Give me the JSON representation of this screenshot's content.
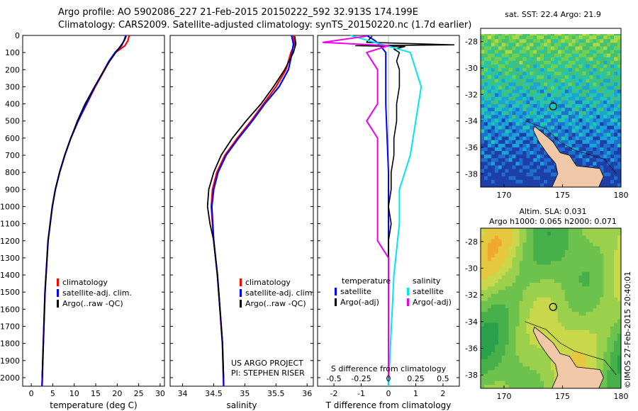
{
  "header": {
    "line1": "Argo profile: AO 5902086_227 21-Feb-2015 20150222_592 32.913S 174.199E",
    "line2": "Climatology: CARS2009. Satellite-adjusted climatology: synTS_20150220.nc (1.7d earlier)"
  },
  "stamp": "©IMOS 27-Feb-2015 20:40:01",
  "colors": {
    "climatology": "#ff0000",
    "satellite": "#0000ff",
    "argo": "#000000",
    "sal_satellite": "#00e5ee",
    "sal_argo": "#ee00ee"
  },
  "chart_data": [
    {
      "type": "line",
      "xlabel": "temperature (deg C)",
      "ylabel": "",
      "xlim": [
        -2,
        31
      ],
      "ylim": [
        2050,
        0
      ],
      "x_ticks": [
        0,
        5,
        10,
        15,
        20,
        25,
        30
      ],
      "y_ticks": [
        0,
        100,
        200,
        300,
        400,
        500,
        600,
        700,
        800,
        900,
        1000,
        1100,
        1200,
        1300,
        1400,
        1500,
        1600,
        1700,
        1800,
        1900,
        2000
      ],
      "legend": [
        "climatology",
        "satellite-adj. clim.",
        "Argo(..raw -QC)"
      ],
      "series": [
        {
          "name": "climatology",
          "depth": [
            0,
            30,
            60,
            100,
            150,
            200,
            300,
            400,
            500,
            600,
            700,
            800,
            900,
            1000,
            1200,
            1500,
            1800,
            2050
          ],
          "values": [
            22.8,
            22.5,
            21.8,
            19.6,
            18.2,
            17.1,
            14.9,
            12.9,
            10.9,
            9.2,
            7.8,
            6.6,
            5.6,
            4.9,
            3.9,
            3.2,
            2.8,
            2.5
          ]
        },
        {
          "name": "satellite-adj. clim.",
          "depth": [
            0,
            30,
            60,
            100,
            150,
            200,
            300,
            400,
            500,
            600,
            700,
            800,
            900,
            1000,
            1200,
            1500,
            1800,
            2050
          ],
          "values": [
            22.0,
            21.6,
            21.0,
            19.5,
            18.1,
            17.0,
            14.8,
            12.8,
            10.9,
            9.2,
            7.8,
            6.6,
            5.6,
            4.9,
            3.9,
            3.2,
            2.8,
            2.5
          ]
        },
        {
          "name": "Argo(..raw -QC)",
          "depth": [
            4,
            30,
            60,
            100,
            150,
            200,
            300,
            400,
            500,
            600,
            700,
            800,
            900,
            1000,
            1200,
            1500,
            1800,
            2000
          ],
          "values": [
            22.1,
            21.7,
            20.8,
            19.7,
            18.3,
            17.0,
            14.7,
            12.5,
            10.7,
            9.2,
            7.8,
            6.6,
            5.6,
            4.9,
            3.9,
            3.2,
            2.8,
            2.5
          ]
        }
      ]
    },
    {
      "type": "line",
      "xlabel": "salinity",
      "ylabel": "",
      "xlim": [
        33.8,
        36.1
      ],
      "ylim": [
        2050,
        0
      ],
      "x_ticks": [
        34,
        34.5,
        35,
        35.5,
        36
      ],
      "legend": [
        "climatology",
        "satellite-adj. clim.",
        "Argo(..raw -QC)"
      ],
      "annotation": [
        "US ARGO PROJECT",
        "PI: STEPHEN RISER"
      ],
      "series": [
        {
          "name": "climatology",
          "depth": [
            0,
            50,
            100,
            200,
            300,
            400,
            500,
            600,
            700,
            800,
            900,
            1000,
            1200,
            1400,
            1600,
            1800,
            2050
          ],
          "values": [
            35.78,
            35.8,
            35.74,
            35.66,
            35.5,
            35.3,
            35.1,
            34.88,
            34.68,
            34.55,
            34.48,
            34.46,
            34.5,
            34.56,
            34.6,
            34.64,
            34.66
          ]
        },
        {
          "name": "satellite-adj. clim.",
          "depth": [
            0,
            50,
            100,
            200,
            300,
            400,
            500,
            600,
            700,
            800,
            900,
            1000,
            1200,
            1400,
            1600,
            1800,
            2050
          ],
          "values": [
            35.75,
            35.78,
            35.76,
            35.7,
            35.55,
            35.32,
            35.12,
            34.9,
            34.7,
            34.57,
            34.5,
            34.47,
            34.5,
            34.56,
            34.6,
            34.64,
            34.66
          ]
        },
        {
          "name": "Argo(..raw -QC)",
          "depth": [
            4,
            50,
            100,
            200,
            300,
            400,
            500,
            600,
            700,
            800,
            900,
            1000,
            1100,
            1200,
            1400,
            1600,
            1800,
            2000
          ],
          "values": [
            35.8,
            35.82,
            35.78,
            35.64,
            35.46,
            35.26,
            35.02,
            34.8,
            34.62,
            34.5,
            34.42,
            34.4,
            34.44,
            34.5,
            34.56,
            34.6,
            34.64,
            34.66
          ]
        }
      ]
    },
    {
      "type": "line",
      "xlabel": "T difference from climatology",
      "xlabel_secondary": "S difference from climatology",
      "xlim": [
        -2.6,
        2.6
      ],
      "ylim": [
        2050,
        0
      ],
      "x_ticks": [
        -2,
        -1,
        0,
        1,
        2
      ],
      "s_ticks": [
        "-0.5",
        "-0.25",
        "0",
        "0.25",
        "0.5"
      ],
      "legend_titles": [
        "temperature",
        "salinity"
      ],
      "legend": [
        "satellite",
        "Argo(-adj)",
        "satellite",
        "Argo(-adj)"
      ],
      "series": [
        {
          "name": "temperature satellite",
          "depth": [
            0,
            30,
            60,
            100,
            200,
            400,
            800,
            1200,
            2050
          ],
          "values": [
            -0.8,
            -0.5,
            -0.3,
            -0.1,
            -0.1,
            -0.1,
            0,
            0,
            0
          ]
        },
        {
          "name": "temperature Argo(-adj)",
          "depth": [
            4,
            40,
            55,
            60,
            65,
            80,
            100,
            150,
            200,
            300,
            400,
            500,
            600,
            700,
            800,
            900,
            1000,
            1100,
            1200,
            1400,
            1600,
            1800,
            2000
          ],
          "values": [
            -0.6,
            -0.8,
            2.4,
            -1.2,
            0.6,
            0.2,
            0.4,
            0.3,
            0.4,
            0.4,
            0.3,
            0.3,
            0.2,
            0.2,
            0.1,
            0.1,
            0.0,
            0.1,
            0.0,
            0.0,
            0.0,
            0.0,
            0.0
          ]
        },
        {
          "name": "salinity satellite",
          "depth": [
            0,
            100,
            300,
            500,
            700,
            900,
            1100,
            1400,
            2050
          ],
          "values": [
            -0.35,
            0.2,
            0.3,
            0.25,
            0.2,
            0.1,
            0.1,
            0.05,
            0.0
          ]
        },
        {
          "name": "salinity Argo(-adj)",
          "depth": [
            4,
            40,
            60,
            100,
            200,
            300,
            400,
            500,
            600,
            700,
            800,
            900,
            1000,
            1100,
            1200,
            1300,
            1500,
            1800,
            2000
          ],
          "values": [
            -0.2,
            -0.6,
            0.0,
            -0.2,
            -0.1,
            -0.1,
            -0.1,
            -0.2,
            -0.1,
            -0.1,
            -0.1,
            -0.1,
            -0.1,
            -0.1,
            -0.1,
            0.0,
            0.0,
            0.0,
            0.0
          ]
        }
      ]
    },
    {
      "type": "heatmap",
      "title": "sat. SST: 22.4  Argo: 21.9",
      "xlim": [
        168,
        180
      ],
      "ylim": [
        -39,
        -27
      ],
      "x_ticks": [
        170,
        175,
        180
      ],
      "y_ticks": [
        -28,
        -30,
        -32,
        -34,
        -36,
        -38
      ],
      "marker": {
        "lon": 174.2,
        "lat": -32.9
      }
    },
    {
      "type": "heatmap",
      "title": [
        "Altim. SLA: 0.031",
        "Argo h1000: 0.065 h2000: 0.071"
      ],
      "xlim": [
        168,
        180
      ],
      "ylim": [
        -39,
        -27
      ],
      "x_ticks": [
        170,
        175,
        180
      ],
      "y_ticks": [
        -28,
        -30,
        -32,
        -34,
        -36,
        -38
      ],
      "marker": {
        "lon": 174.2,
        "lat": -32.9
      }
    }
  ]
}
